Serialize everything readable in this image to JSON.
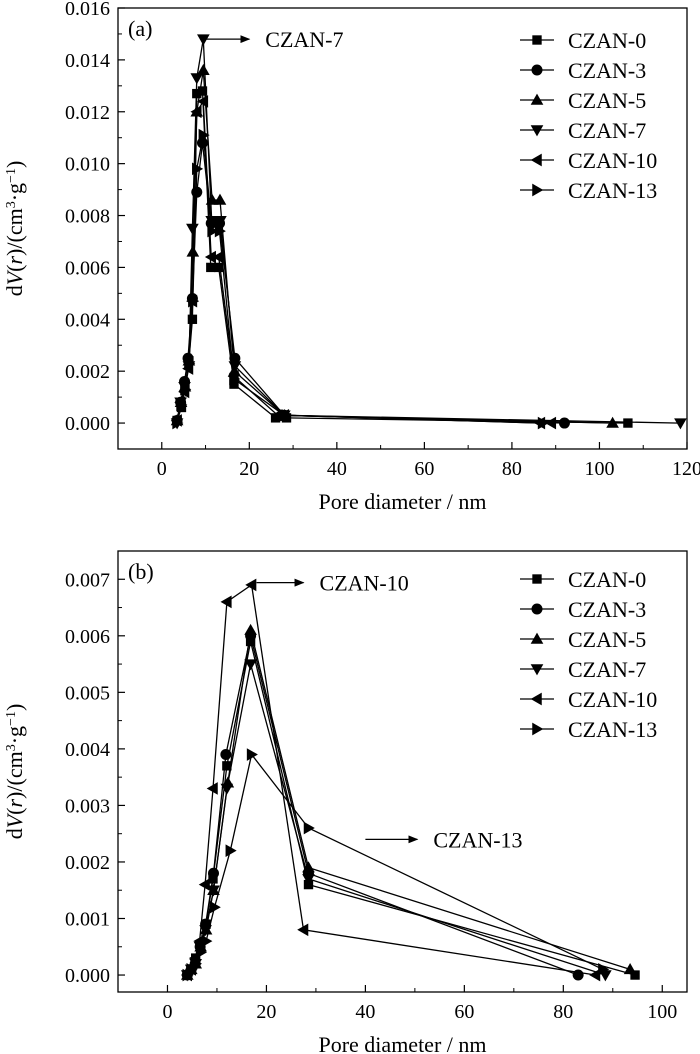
{
  "chart_data": [
    {
      "type": "line",
      "panel_label": "(a)",
      "xlabel": "Pore diameter / nm",
      "ylabel": "dV(r)/(cm³·g⁻¹)",
      "ylabel_parts": {
        "pre": "d",
        "v": "V",
        "mid": "(",
        "r": "r",
        "post": ")/(cm",
        "sup1": "3",
        "dot": "·g",
        "sup2": "−1",
        "end": ")"
      },
      "xlim": [
        -10,
        120
      ],
      "ylim": [
        -0.001,
        0.016
      ],
      "xticks": [
        "0",
        "20",
        "40",
        "60",
        "80",
        "100",
        "120"
      ],
      "xtick_values": [
        0,
        20,
        40,
        60,
        80,
        100,
        120
      ],
      "yticks": [
        "0.000",
        "0.002",
        "0.004",
        "0.006",
        "0.008",
        "0.010",
        "0.012",
        "0.014",
        "0.016"
      ],
      "ytick_values": [
        0,
        0.002,
        0.004,
        0.006,
        0.008,
        0.01,
        0.012,
        0.014,
        0.016
      ],
      "legend_position": "top-right",
      "annotations": [
        {
          "text": "CZAN-7",
          "x": 9.5,
          "y": 0.0148,
          "arrow_end_x": 20,
          "arrow_end_y": 0.0148
        }
      ],
      "series": [
        {
          "name": "CZAN-0",
          "marker": "square",
          "x": [
            3.5,
            4.5,
            5.3,
            6.2,
            7.0,
            8.0,
            9.3,
            11.2,
            13.0,
            16.5,
            26.0,
            28.5,
            106.5
          ],
          "y": [
            0.0001,
            0.0006,
            0.0014,
            0.0024,
            0.004,
            0.0127,
            0.0128,
            0.006,
            0.006,
            0.0015,
            0.0002,
            0.0002,
            0.0
          ]
        },
        {
          "name": "CZAN-3",
          "marker": "circle",
          "x": [
            3.5,
            4.3,
            5.2,
            6.0,
            7.0,
            8.0,
            9.3,
            11.3,
            13.2,
            16.7,
            28.0,
            92.0
          ],
          "y": [
            0.0001,
            0.0008,
            0.0016,
            0.0025,
            0.0048,
            0.0089,
            0.0108,
            0.0077,
            0.0077,
            0.0025,
            0.0003,
            0.0
          ]
        },
        {
          "name": "CZAN-5",
          "marker": "triangle-up",
          "x": [
            3.5,
            4.4,
            5.3,
            6.2,
            7.1,
            8.0,
            9.5,
            11.5,
            13.3,
            16.6,
            28.0,
            103.0
          ],
          "y": [
            0.0001,
            0.0008,
            0.0014,
            0.0024,
            0.0066,
            0.012,
            0.0136,
            0.0086,
            0.0086,
            0.002,
            0.0003,
            0.0
          ]
        },
        {
          "name": "CZAN-7",
          "marker": "triangle-down",
          "x": [
            3.5,
            4.3,
            5.2,
            6.2,
            7.0,
            8.0,
            9.5,
            11.4,
            13.4,
            16.7,
            28.0,
            118.5
          ],
          "y": [
            0.0,
            0.0008,
            0.0014,
            0.0022,
            0.0075,
            0.0133,
            0.0148,
            0.0078,
            0.0078,
            0.0022,
            0.0003,
            0.0
          ]
        },
        {
          "name": "CZAN-10",
          "marker": "triangle-left",
          "x": [
            3.5,
            4.3,
            5.2,
            6.1,
            7.0,
            8.0,
            9.5,
            11.3,
            13.0,
            16.5,
            26.5,
            28.0,
            86.5,
            89.0
          ],
          "y": [
            0.0001,
            0.0008,
            0.0012,
            0.0021,
            0.0047,
            0.012,
            0.0124,
            0.0064,
            0.0064,
            0.0018,
            0.0003,
            0.0003,
            0.0,
            0.0
          ]
        },
        {
          "name": "CZAN-13",
          "marker": "triangle-right",
          "x": [
            3.5,
            4.4,
            5.3,
            6.2,
            7.1,
            8.0,
            9.5,
            11.5,
            13.2,
            16.5,
            28.0,
            87.0
          ],
          "y": [
            0.0,
            0.0007,
            0.0013,
            0.0023,
            0.0047,
            0.0098,
            0.0111,
            0.0074,
            0.0074,
            0.0017,
            0.0003,
            0.0
          ]
        }
      ]
    },
    {
      "type": "line",
      "panel_label": "(b)",
      "xlabel": "Pore diameter / nm",
      "ylabel": "dV(r)/(cm³·g⁻¹)",
      "ylabel_parts": {
        "pre": "d",
        "v": "V",
        "mid": "(",
        "r": "r",
        "post": ")/(cm",
        "sup1": "3",
        "dot": "·g",
        "sup2": "−1",
        "end": ")"
      },
      "xlim": [
        -10,
        105
      ],
      "ylim": [
        -0.0003,
        0.0075
      ],
      "xticks": [
        "0",
        "20",
        "40",
        "60",
        "80",
        "100"
      ],
      "xtick_values": [
        0,
        20,
        40,
        60,
        80,
        100
      ],
      "yticks": [
        "0.000",
        "0.001",
        "0.002",
        "0.003",
        "0.004",
        "0.005",
        "0.006",
        "0.007"
      ],
      "ytick_values": [
        0,
        0.001,
        0.002,
        0.003,
        0.004,
        0.005,
        0.006,
        0.007
      ],
      "legend_position": "top-right",
      "annotations": [
        {
          "text": "CZAN-10",
          "x": 18.0,
          "y": 0.00694,
          "arrow_end_x": 27.5,
          "arrow_end_y": 0.00694
        },
        {
          "text": "CZAN-13",
          "x": 40.0,
          "y": 0.0024,
          "arrow_end_x": 50.5,
          "arrow_end_y": 0.0024
        }
      ],
      "series": [
        {
          "name": "CZAN-0",
          "marker": "square",
          "x": [
            4.0,
            4.8,
            5.7,
            6.7,
            7.8,
            9.2,
            12.0,
            16.8,
            28.5,
            94.5
          ],
          "y": [
            0.0,
            0.0001,
            0.0003,
            0.0005,
            0.0009,
            0.0017,
            0.0037,
            0.0059,
            0.0016,
            0.0
          ]
        },
        {
          "name": "CZAN-3",
          "marker": "circle",
          "x": [
            4.0,
            4.8,
            5.6,
            6.6,
            7.7,
            9.3,
            11.8,
            16.8,
            28.5,
            83.0
          ],
          "y": [
            0.0,
            0.0001,
            0.0002,
            0.0005,
            0.0009,
            0.0018,
            0.0039,
            0.006,
            0.0018,
            0.0
          ]
        },
        {
          "name": "CZAN-5",
          "marker": "triangle-up",
          "x": [
            4.0,
            4.8,
            5.7,
            6.7,
            7.8,
            9.3,
            12.2,
            16.8,
            28.5,
            93.5
          ],
          "y": [
            0.0,
            0.0001,
            0.0002,
            0.0005,
            0.0008,
            0.0015,
            0.0034,
            0.0061,
            0.0019,
            0.0001
          ]
        },
        {
          "name": "CZAN-7",
          "marker": "triangle-down",
          "x": [
            4.0,
            4.8,
            5.7,
            6.6,
            7.7,
            9.3,
            12.0,
            16.8,
            28.5,
            88.5
          ],
          "y": [
            0.0,
            0.0001,
            0.0002,
            0.0005,
            0.0008,
            0.0015,
            0.0033,
            0.0055,
            0.0017,
            0.0
          ]
        },
        {
          "name": "CZAN-10",
          "marker": "triangle-left",
          "x": [
            4.0,
            4.8,
            5.6,
            6.5,
            7.6,
            9.2,
            12.0,
            17.0,
            27.5,
            86.5
          ],
          "y": [
            0.0,
            0.0001,
            0.0003,
            0.0006,
            0.0016,
            0.0033,
            0.0066,
            0.0069,
            0.0008,
            0.0
          ]
        },
        {
          "name": "CZAN-13",
          "marker": "triangle-right",
          "x": [
            4.0,
            4.8,
            5.7,
            6.7,
            7.8,
            9.5,
            12.7,
            17.0,
            28.5,
            88.0
          ],
          "y": [
            0.0,
            0.0001,
            0.0002,
            0.0004,
            0.0006,
            0.0012,
            0.0022,
            0.0039,
            0.0026,
            0.0001
          ]
        }
      ]
    }
  ]
}
